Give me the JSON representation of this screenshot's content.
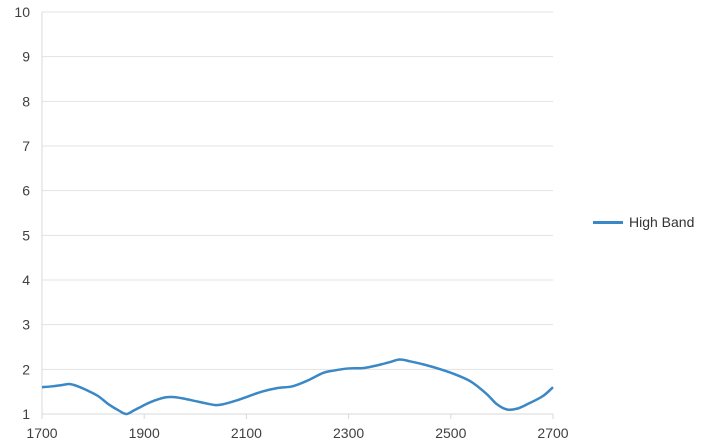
{
  "chart_data": {
    "type": "line",
    "x_ticks": [
      1700,
      1900,
      2100,
      2300,
      2500,
      2700
    ],
    "y_ticks": [
      1,
      2,
      3,
      4,
      5,
      6,
      7,
      8,
      9,
      10
    ],
    "xlim": [
      1700,
      2700
    ],
    "ylim": [
      1,
      10
    ],
    "grid": "horizontal",
    "legend_position": "right",
    "series": [
      {
        "name": "High Band",
        "color": "#3a88c6",
        "x": [
          1700,
          1720,
          1740,
          1755,
          1770,
          1790,
          1810,
          1830,
          1850,
          1865,
          1880,
          1900,
          1920,
          1940,
          1955,
          1975,
          2000,
          2020,
          2040,
          2055,
          2080,
          2100,
          2130,
          2160,
          2190,
          2220,
          2250,
          2270,
          2300,
          2330,
          2360,
          2380,
          2400,
          2420,
          2450,
          2480,
          2510,
          2540,
          2570,
          2590,
          2610,
          2630,
          2650,
          2680,
          2700
        ],
        "y": [
          1.6,
          1.62,
          1.65,
          1.67,
          1.62,
          1.52,
          1.4,
          1.22,
          1.08,
          1.0,
          1.08,
          1.2,
          1.3,
          1.37,
          1.38,
          1.35,
          1.29,
          1.24,
          1.2,
          1.22,
          1.3,
          1.38,
          1.5,
          1.58,
          1.62,
          1.75,
          1.92,
          1.97,
          2.02,
          2.03,
          2.1,
          2.16,
          2.22,
          2.18,
          2.1,
          2.0,
          1.88,
          1.72,
          1.45,
          1.22,
          1.1,
          1.12,
          1.22,
          1.4,
          1.6
        ]
      }
    ]
  }
}
